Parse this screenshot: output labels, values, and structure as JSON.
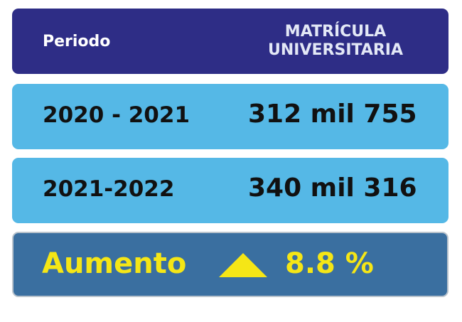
{
  "header": {
    "columns": [
      "Periodo",
      "MATRÍCULA UNIVERSITARIA"
    ]
  },
  "table": {
    "rows": [
      [
        "2020 - 2021",
        "312 mil 755"
      ],
      [
        "2021-2022",
        "340 mil 316"
      ]
    ]
  },
  "footer": {
    "label": "Aumento",
    "value": "8.8 %"
  }
}
